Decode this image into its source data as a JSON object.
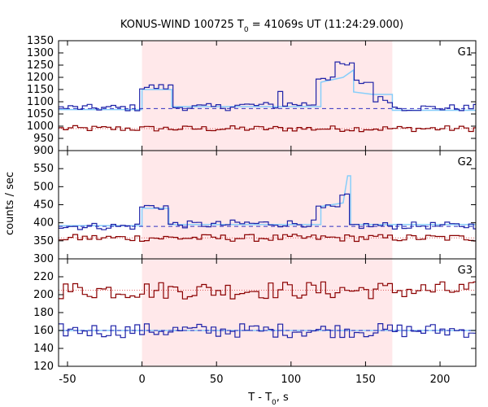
{
  "chart_data": {
    "type": "line",
    "title_main": "KONUS-WIND 100725 T",
    "title_sub": "0",
    "title_rest": " = 41069s UT (11:24:29.000)",
    "xlabel_main": "T - T",
    "xlabel_sub": "0",
    "xlabel_rest": ", s",
    "ylabel": "counts / sec",
    "xlim": [
      -56,
      224
    ],
    "x_ticks": [
      "-50",
      "0",
      "50",
      "100",
      "150",
      "200"
    ],
    "x_tick_values": [
      -50,
      0,
      50,
      100,
      150,
      200
    ],
    "highlight_interval": [
      0,
      168
    ],
    "colors": {
      "light_series": "#1e22a8",
      "dark_series": "#8b0000",
      "fit": "#87cefa",
      "highlight": "#ffe8ea",
      "background_level": "#3030c0",
      "dark_level": "#e06060"
    },
    "panels": [
      {
        "label": "G1",
        "ylim": [
          900,
          1350
        ],
        "y_ticks": [
          "1350",
          "1300",
          "1250",
          "1200",
          "1150",
          "1100",
          "1050",
          "1000",
          "950",
          "900"
        ],
        "y_tick_values": [
          1350,
          1300,
          1250,
          1200,
          1150,
          1100,
          1050,
          1000,
          950,
          900
        ],
        "background_level": 1072,
        "dark_level": 990,
        "fit": [
          [
            -56,
            1068
          ],
          [
            0,
            1068
          ],
          [
            0,
            1150
          ],
          [
            20,
            1150
          ],
          [
            20,
            1080
          ],
          [
            60,
            1080
          ],
          [
            120,
            1080
          ],
          [
            120,
            1180
          ],
          [
            135,
            1200
          ],
          [
            142,
            1230
          ],
          [
            142,
            1140
          ],
          [
            155,
            1130
          ],
          [
            168,
            1130
          ],
          [
            168,
            1065
          ],
          [
            224,
            1065
          ]
        ],
        "light_series": [
          {
            "amp": [
              0,
              40
            ],
            "base": 1075
          },
          {
            "amp": [
              0,
              0
            ],
            "base": 1075
          }
        ]
      },
      {
        "label": "G2",
        "ylim": [
          300,
          600
        ],
        "y_ticks": [
          "550",
          "500",
          "450",
          "400",
          "350",
          "300"
        ],
        "y_tick_values": [
          550,
          500,
          450,
          400,
          350,
          300
        ],
        "background_level": 390,
        "dark_level": 358,
        "fit": [
          [
            -56,
            392
          ],
          [
            0,
            392
          ],
          [
            0,
            440
          ],
          [
            18,
            440
          ],
          [
            18,
            395
          ],
          [
            120,
            395
          ],
          [
            120,
            445
          ],
          [
            135,
            455
          ],
          [
            138,
            530
          ],
          [
            140,
            530
          ],
          [
            140,
            395
          ],
          [
            224,
            395
          ]
        ]
      },
      {
        "label": "G3",
        "ylim": [
          120,
          240
        ],
        "y_ticks": [
          "220",
          "200",
          "180",
          "160",
          "140",
          "120"
        ],
        "y_tick_values": [
          220,
          200,
          180,
          160,
          140,
          120
        ],
        "background_level": 160,
        "dark_level": 205
      }
    ]
  }
}
